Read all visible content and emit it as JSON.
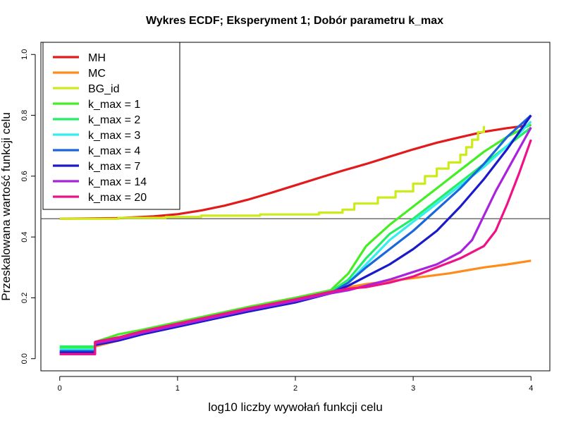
{
  "chart_data": {
    "type": "line",
    "title": "Wykres ECDF; Eksperyment 1; Dobór parametru k_max",
    "xlabel": "log10 liczby wywołań funkcji celu",
    "ylabel": "Przeskalowana wartość funkcji celu",
    "xlim": [
      -0.16,
      4.16
    ],
    "ylim": [
      -0.04,
      1.04
    ],
    "x_ticks": [
      0,
      1,
      2,
      3,
      4
    ],
    "y_ticks": [
      0.0,
      0.2,
      0.4,
      0.6,
      0.8,
      1.0
    ],
    "x_tick_labels": [
      "0",
      "1",
      "2",
      "3",
      "4"
    ],
    "y_tick_labels": [
      "0.0",
      "0.2",
      "0.4",
      "0.6",
      "0.8",
      "1.0"
    ],
    "grid": false,
    "legend_position": "top-left",
    "hline": 0.46,
    "series": [
      {
        "name": "MH",
        "color": "#e31a1c",
        "step": false,
        "x": [
          0,
          0.5,
          0.8,
          1.0,
          1.2,
          1.4,
          1.6,
          1.8,
          2.0,
          2.2,
          2.4,
          2.6,
          2.8,
          3.0,
          3.2,
          3.4,
          3.6,
          3.8,
          4.0
        ],
        "y": [
          0.46,
          0.462,
          0.468,
          0.475,
          0.487,
          0.503,
          0.523,
          0.546,
          0.57,
          0.594,
          0.618,
          0.64,
          0.664,
          0.688,
          0.71,
          0.728,
          0.746,
          0.758,
          0.768
        ]
      },
      {
        "name": "MC",
        "color": "#ff8c1a",
        "step": false,
        "x": [
          0,
          0.3,
          0.3,
          0.5,
          0.7,
          1.0,
          1.3,
          1.6,
          2.0,
          2.3,
          2.6,
          3.0,
          3.3,
          3.6,
          3.8,
          4.0
        ],
        "y": [
          0.02,
          0.02,
          0.04,
          0.06,
          0.08,
          0.11,
          0.14,
          0.17,
          0.2,
          0.225,
          0.245,
          0.265,
          0.28,
          0.3,
          0.31,
          0.322
        ]
      },
      {
        "name": "BG_id",
        "color": "#cdea1a",
        "step": true,
        "x": [
          0,
          0.3,
          0.5,
          0.9,
          1.2,
          1.7,
          2.2,
          2.4,
          2.5,
          2.7,
          2.85,
          3.0,
          3.1,
          3.2,
          3.3,
          3.4,
          3.45,
          3.5,
          3.55,
          3.6
        ],
        "y": [
          0.46,
          0.46,
          0.463,
          0.466,
          0.47,
          0.474,
          0.48,
          0.49,
          0.51,
          0.53,
          0.55,
          0.575,
          0.6,
          0.625,
          0.645,
          0.67,
          0.695,
          0.72,
          0.745,
          0.765
        ]
      },
      {
        "name": "k_max = 1",
        "color": "#44ee22",
        "step": false,
        "x": [
          0,
          0.3,
          0.3,
          0.5,
          0.7,
          1.0,
          1.3,
          1.6,
          2.0,
          2.3,
          2.45,
          2.6,
          2.8,
          3.0,
          3.2,
          3.4,
          3.6,
          3.8,
          4.0
        ],
        "y": [
          0.035,
          0.035,
          0.055,
          0.08,
          0.095,
          0.12,
          0.145,
          0.17,
          0.2,
          0.225,
          0.28,
          0.37,
          0.44,
          0.5,
          0.56,
          0.62,
          0.68,
          0.73,
          0.77
        ]
      },
      {
        "name": "k_max = 2",
        "color": "#22ee66",
        "step": false,
        "x": [
          0,
          0.3,
          0.3,
          0.5,
          0.7,
          1.0,
          1.3,
          1.6,
          2.0,
          2.3,
          2.45,
          2.6,
          2.8,
          3.0,
          3.2,
          3.4,
          3.6,
          3.8,
          4.0
        ],
        "y": [
          0.04,
          0.04,
          0.055,
          0.07,
          0.09,
          0.115,
          0.14,
          0.165,
          0.195,
          0.22,
          0.26,
          0.33,
          0.41,
          0.46,
          0.52,
          0.58,
          0.64,
          0.7,
          0.76
        ]
      },
      {
        "name": "k_max = 3",
        "color": "#33eeee",
        "step": false,
        "x": [
          0,
          0.3,
          0.3,
          0.5,
          0.7,
          1.0,
          1.3,
          1.6,
          2.0,
          2.3,
          2.45,
          2.6,
          2.8,
          3.0,
          3.2,
          3.4,
          3.6,
          3.8,
          4.0
        ],
        "y": [
          0.03,
          0.03,
          0.05,
          0.065,
          0.085,
          0.11,
          0.135,
          0.16,
          0.19,
          0.215,
          0.25,
          0.31,
          0.39,
          0.45,
          0.51,
          0.57,
          0.63,
          0.7,
          0.78
        ]
      },
      {
        "name": "k_max = 4",
        "color": "#1a66dd",
        "step": false,
        "x": [
          0,
          0.3,
          0.3,
          0.5,
          0.7,
          1.0,
          1.3,
          1.6,
          2.0,
          2.3,
          2.45,
          2.6,
          2.8,
          3.0,
          3.2,
          3.4,
          3.6,
          3.8,
          4.0
        ],
        "y": [
          0.025,
          0.025,
          0.045,
          0.06,
          0.08,
          0.105,
          0.13,
          0.155,
          0.185,
          0.215,
          0.25,
          0.3,
          0.36,
          0.42,
          0.49,
          0.56,
          0.64,
          0.73,
          0.8
        ]
      },
      {
        "name": "k_max = 7",
        "color": "#1a1acc",
        "step": false,
        "x": [
          0,
          0.3,
          0.3,
          0.5,
          0.7,
          1.0,
          1.3,
          1.6,
          2.0,
          2.3,
          2.45,
          2.6,
          2.8,
          3.0,
          3.2,
          3.4,
          3.6,
          3.8,
          4.0
        ],
        "y": [
          0.02,
          0.02,
          0.045,
          0.06,
          0.08,
          0.105,
          0.13,
          0.155,
          0.185,
          0.215,
          0.24,
          0.27,
          0.31,
          0.36,
          0.42,
          0.5,
          0.59,
          0.69,
          0.8
        ]
      },
      {
        "name": "k_max = 14",
        "color": "#aa22dd",
        "step": false,
        "x": [
          0,
          0.3,
          0.3,
          0.5,
          0.7,
          1.0,
          1.3,
          1.6,
          2.0,
          2.3,
          2.45,
          2.6,
          2.8,
          3.0,
          3.2,
          3.4,
          3.5,
          3.6,
          3.7,
          3.8,
          3.9,
          4.0
        ],
        "y": [
          0.015,
          0.015,
          0.05,
          0.065,
          0.085,
          0.11,
          0.135,
          0.16,
          0.19,
          0.215,
          0.225,
          0.24,
          0.26,
          0.285,
          0.31,
          0.35,
          0.39,
          0.47,
          0.55,
          0.62,
          0.69,
          0.76
        ]
      },
      {
        "name": "k_max = 20",
        "color": "#ee1188",
        "step": false,
        "x": [
          0,
          0.3,
          0.3,
          0.5,
          0.7,
          1.0,
          1.3,
          1.6,
          2.0,
          2.3,
          2.45,
          2.6,
          2.8,
          3.0,
          3.2,
          3.4,
          3.6,
          3.7,
          3.8,
          3.9,
          4.0
        ],
        "y": [
          0.015,
          0.015,
          0.055,
          0.07,
          0.09,
          0.115,
          0.14,
          0.165,
          0.195,
          0.22,
          0.23,
          0.235,
          0.25,
          0.27,
          0.3,
          0.33,
          0.37,
          0.42,
          0.51,
          0.61,
          0.72
        ]
      }
    ]
  }
}
